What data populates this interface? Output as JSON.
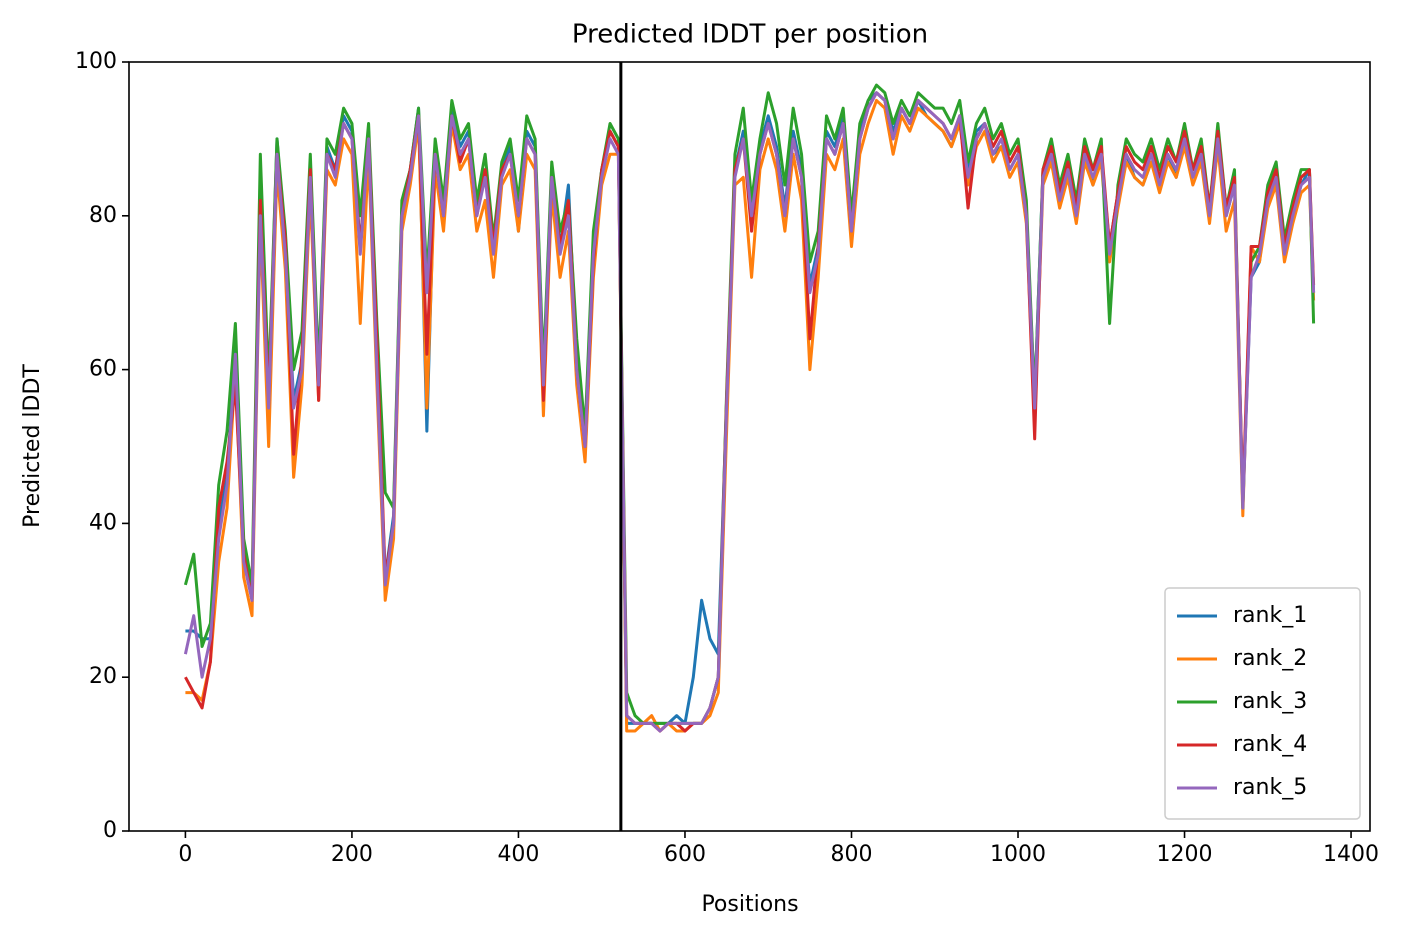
{
  "chart_data": {
    "type": "line",
    "title": "Predicted lDDT per position",
    "xlabel": "Positions",
    "ylabel": "Predicted lDDT",
    "xlim": [
      -67.75,
      1422.75
    ],
    "ylim": [
      0,
      100
    ],
    "xticks": [
      0,
      200,
      400,
      600,
      800,
      1000,
      1200,
      1400
    ],
    "yticks": [
      0,
      20,
      40,
      60,
      80,
      100
    ],
    "legend": "lower right",
    "vlines": [
      523
    ],
    "vline_color": "#000000",
    "x": [
      0,
      10,
      20,
      30,
      40,
      50,
      60,
      70,
      80,
      90,
      100,
      110,
      120,
      130,
      140,
      150,
      160,
      170,
      180,
      190,
      200,
      210,
      220,
      230,
      240,
      250,
      260,
      270,
      280,
      290,
      300,
      310,
      320,
      330,
      340,
      350,
      360,
      370,
      380,
      390,
      400,
      410,
      420,
      430,
      440,
      450,
      460,
      470,
      480,
      490,
      500,
      510,
      520,
      530,
      540,
      550,
      560,
      570,
      580,
      590,
      600,
      610,
      620,
      630,
      640,
      650,
      660,
      670,
      680,
      690,
      700,
      710,
      720,
      730,
      740,
      750,
      760,
      770,
      780,
      790,
      800,
      810,
      820,
      830,
      840,
      850,
      860,
      870,
      880,
      890,
      900,
      910,
      920,
      930,
      940,
      950,
      960,
      970,
      980,
      990,
      1000,
      1010,
      1020,
      1030,
      1040,
      1050,
      1060,
      1070,
      1080,
      1090,
      1100,
      1110,
      1120,
      1130,
      1140,
      1150,
      1160,
      1170,
      1180,
      1190,
      1200,
      1210,
      1220,
      1230,
      1240,
      1250,
      1260,
      1270,
      1280,
      1290,
      1300,
      1310,
      1320,
      1330,
      1340,
      1350,
      1355
    ],
    "series": [
      {
        "name": "rank_1",
        "color": "#1f77b4",
        "values": [
          26,
          26,
          25,
          25,
          40,
          46,
          63,
          36,
          31,
          81,
          56,
          90,
          76,
          56,
          61,
          86,
          59,
          89,
          86,
          93,
          91,
          76,
          91,
          61,
          33,
          41,
          81,
          86,
          94,
          52,
          89,
          81,
          94,
          89,
          91,
          81,
          86,
          76,
          86,
          89,
          78,
          91,
          89,
          59,
          86,
          76,
          84,
          61,
          51,
          76,
          86,
          91,
          89,
          14,
          14,
          14,
          14,
          14,
          14,
          15,
          14,
          20,
          30,
          25,
          23,
          56,
          86,
          91,
          81,
          89,
          93,
          89,
          81,
          91,
          86,
          71,
          76,
          91,
          89,
          93,
          79,
          91,
          95,
          96,
          95,
          91,
          94,
          92,
          95,
          93,
          92,
          91,
          89,
          92,
          86,
          91,
          92,
          88,
          89,
          86,
          88,
          80,
          56,
          86,
          89,
          82,
          86,
          80,
          88,
          84,
          88,
          76,
          83,
          88,
          85,
          84,
          87,
          84,
          88,
          85,
          90,
          86,
          88,
          80,
          90,
          80,
          84,
          43,
          72,
          74,
          83,
          85,
          76,
          80,
          84,
          86,
          70
        ]
      },
      {
        "name": "rank_2",
        "color": "#ff7f0e",
        "values": [
          18,
          18,
          17,
          22,
          35,
          42,
          60,
          33,
          28,
          79,
          50,
          86,
          73,
          46,
          58,
          83,
          56,
          86,
          84,
          90,
          88,
          66,
          88,
          58,
          30,
          38,
          78,
          84,
          92,
          55,
          86,
          78,
          92,
          86,
          88,
          78,
          82,
          72,
          84,
          86,
          78,
          88,
          86,
          54,
          83,
          72,
          78,
          58,
          48,
          72,
          84,
          88,
          88,
          13,
          13,
          14,
          15,
          13,
          14,
          13,
          13,
          14,
          14,
          15,
          18,
          52,
          84,
          85,
          72,
          86,
          90,
          86,
          78,
          88,
          82,
          60,
          72,
          88,
          86,
          90,
          76,
          88,
          92,
          95,
          94,
          88,
          93,
          91,
          94,
          93,
          92,
          91,
          89,
          92,
          84,
          89,
          91,
          87,
          89,
          85,
          87,
          79,
          54,
          84,
          87,
          81,
          85,
          79,
          87,
          84,
          87,
          74,
          81,
          87,
          85,
          84,
          87,
          83,
          87,
          85,
          89,
          84,
          87,
          79,
          89,
          78,
          82,
          41,
          76,
          74,
          81,
          84,
          74,
          79,
          83,
          84,
          69
        ]
      },
      {
        "name": "rank_3",
        "color": "#2ca02c",
        "values": [
          32,
          36,
          24,
          27,
          45,
          52,
          66,
          38,
          32,
          88,
          58,
          90,
          78,
          60,
          65,
          88,
          60,
          90,
          88,
          94,
          92,
          80,
          92,
          66,
          44,
          42,
          82,
          86,
          94,
          72,
          90,
          82,
          95,
          90,
          92,
          82,
          88,
          77,
          87,
          90,
          82,
          93,
          90,
          60,
          87,
          78,
          82,
          64,
          52,
          78,
          86,
          92,
          90,
          18,
          15,
          14,
          14,
          14,
          14,
          14,
          14,
          14,
          14,
          16,
          20,
          57,
          88,
          94,
          82,
          90,
          96,
          92,
          84,
          94,
          88,
          74,
          78,
          93,
          90,
          94,
          80,
          92,
          95,
          97,
          96,
          92,
          95,
          93,
          96,
          95,
          94,
          94,
          92,
          95,
          87,
          92,
          94,
          90,
          92,
          88,
          90,
          82,
          56,
          86,
          90,
          84,
          88,
          82,
          90,
          86,
          90,
          66,
          84,
          90,
          88,
          87,
          90,
          86,
          90,
          87,
          92,
          86,
          90,
          81,
          92,
          81,
          86,
          42,
          74,
          76,
          84,
          87,
          77,
          82,
          86,
          86,
          66
        ]
      },
      {
        "name": "rank_4",
        "color": "#d62728",
        "values": [
          20,
          18,
          16,
          22,
          42,
          48,
          58,
          36,
          30,
          82,
          56,
          88,
          77,
          49,
          62,
          86,
          56,
          88,
          86,
          92,
          90,
          76,
          90,
          64,
          33,
          40,
          80,
          86,
          93,
          62,
          88,
          80,
          93,
          87,
          90,
          80,
          86,
          76,
          86,
          88,
          80,
          90,
          88,
          56,
          85,
          76,
          82,
          60,
          50,
          74,
          86,
          91,
          89,
          15,
          14,
          14,
          14,
          13,
          14,
          14,
          13,
          14,
          14,
          16,
          20,
          56,
          86,
          90,
          78,
          88,
          92,
          88,
          80,
          90,
          85,
          64,
          76,
          90,
          88,
          92,
          78,
          90,
          94,
          96,
          95,
          90,
          94,
          92,
          95,
          94,
          93,
          92,
          90,
          93,
          81,
          90,
          92,
          89,
          91,
          87,
          89,
          80,
          51,
          86,
          89,
          83,
          87,
          81,
          89,
          86,
          89,
          76,
          83,
          89,
          87,
          86,
          89,
          85,
          89,
          87,
          91,
          86,
          89,
          81,
          91,
          81,
          85,
          43,
          76,
          76,
          83,
          86,
          76,
          81,
          85,
          86,
          71
        ]
      },
      {
        "name": "rank_5",
        "color": "#9467bd",
        "values": [
          23,
          28,
          20,
          25,
          38,
          45,
          62,
          35,
          30,
          80,
          55,
          88,
          75,
          55,
          60,
          85,
          58,
          88,
          85,
          92,
          90,
          75,
          90,
          60,
          32,
          40,
          80,
          85,
          93,
          70,
          88,
          80,
          93,
          88,
          90,
          80,
          85,
          75,
          85,
          88,
          80,
          90,
          88,
          58,
          85,
          75,
          80,
          60,
          50,
          75,
          85,
          90,
          88,
          15,
          14,
          14,
          14,
          13,
          14,
          14,
          14,
          14,
          14,
          16,
          20,
          55,
          85,
          90,
          80,
          88,
          92,
          88,
          80,
          90,
          85,
          70,
          75,
          90,
          88,
          92,
          78,
          90,
          94,
          96,
          95,
          90,
          94,
          92,
          95,
          94,
          93,
          92,
          90,
          93,
          85,
          90,
          92,
          88,
          90,
          86,
          88,
          80,
          55,
          85,
          88,
          82,
          86,
          80,
          88,
          85,
          88,
          75,
          82,
          88,
          86,
          85,
          88,
          84,
          88,
          86,
          90,
          85,
          88,
          80,
          90,
          80,
          84,
          42,
          72,
          75,
          82,
          85,
          75,
          80,
          84,
          85,
          70
        ]
      }
    ]
  }
}
